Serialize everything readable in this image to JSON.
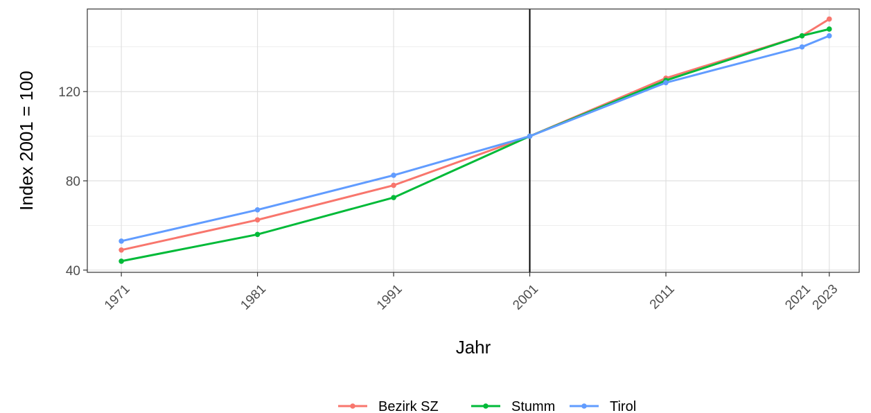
{
  "chart_data": {
    "type": "line",
    "title": "",
    "xlabel": "Jahr",
    "ylabel": "Index 2001 = 100",
    "x": [
      1971,
      1981,
      1991,
      2001,
      2011,
      2021,
      2023
    ],
    "x_tick_labels": [
      "1971",
      "1981",
      "1991",
      "2001",
      "2011",
      "2021",
      "2023"
    ],
    "y_ticks": [
      40,
      80,
      120
    ],
    "y_tick_labels": [
      "40",
      "80",
      "120"
    ],
    "xlim": [
      1968.5,
      2025.2
    ],
    "ylim": [
      39,
      157
    ],
    "grid": true,
    "reference_line_x": 2001,
    "legend_position": "bottom",
    "series": [
      {
        "name": "Bezirk SZ",
        "color": "#F8766D",
        "values": [
          49,
          62.5,
          78,
          100,
          126,
          145,
          152.5
        ]
      },
      {
        "name": "Stumm",
        "color": "#00BA38",
        "values": [
          44,
          56,
          72.5,
          100,
          125,
          145,
          148
        ]
      },
      {
        "name": "Tirol",
        "color": "#619CFF",
        "values": [
          53,
          67,
          82.5,
          100,
          124,
          140,
          145
        ]
      }
    ]
  }
}
